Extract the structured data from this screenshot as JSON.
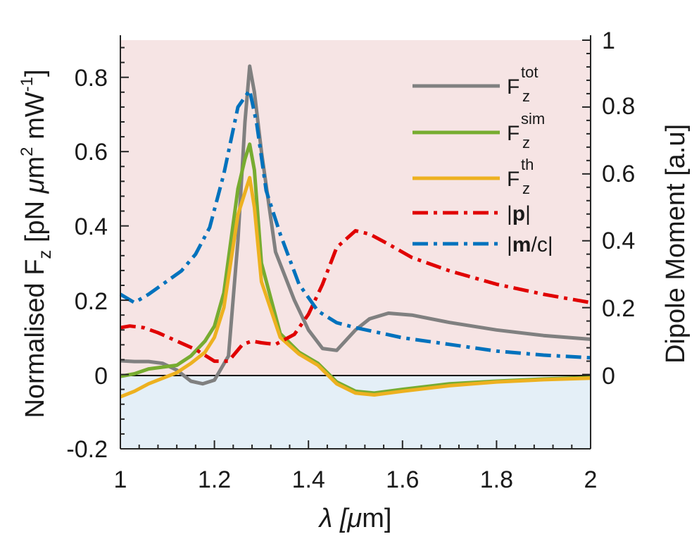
{
  "chart_data": {
    "type": "line",
    "x_ticks": [
      "1",
      "1.2",
      "1.4",
      "1.6",
      "1.8",
      "2"
    ],
    "y_left_ticks": [
      "-0.2",
      "0",
      "0.2",
      "0.4",
      "0.6",
      "0.8"
    ],
    "y_right_ticks": [
      "0",
      "0.2",
      "0.4",
      "0.6",
      "0.8",
      "1"
    ],
    "xlabel": {
      "pre": "λ [",
      "mu": "μ",
      "post": "m]"
    },
    "ylabel_left": {
      "pre": "Normalised F",
      "sub": "z",
      "mid": " [pN ",
      "mu": "μ",
      "m": "m",
      "sup2": "2",
      "mw": " mW",
      "supm1": "-1",
      "end": "]"
    },
    "ylabel_right": "Dipole Moment [a.u]",
    "xlim": [
      1,
      2
    ],
    "ylim_left": [
      -0.2,
      0.9
    ],
    "ylim_right": [
      -0.2222,
      1
    ],
    "colors": {
      "positive_region": "#f6e4e4",
      "negative_region": "#e4eff7",
      "zero_line": "#000000"
    },
    "legend": [
      {
        "label": "F",
        "sub": "z",
        "sup": "tot",
        "color": "#808080",
        "dash": "solid"
      },
      {
        "label": "F",
        "sub": "z",
        "sup": "sim",
        "color": "#77ac30",
        "dash": "solid"
      },
      {
        "label": "F",
        "sub": "z",
        "sup": "th",
        "color": "#edb120",
        "dash": "solid"
      },
      {
        "label_pre": "|",
        "label_bold": "p",
        "label_post": "|",
        "color": "#e00000",
        "dash": "dashdot"
      },
      {
        "label_pre": "|",
        "label_bold": "m",
        "label_post": "/c|",
        "color": "#0072bd",
        "dash": "dashdot"
      }
    ],
    "series": [
      {
        "name": "F_z^tot",
        "axis": "left",
        "color": "#808080",
        "dash": "solid",
        "x": [
          1.0,
          1.03,
          1.06,
          1.09,
          1.12,
          1.15,
          1.175,
          1.2,
          1.23,
          1.25,
          1.265,
          1.275,
          1.285,
          1.3,
          1.33,
          1.37,
          1.4,
          1.43,
          1.46,
          1.5,
          1.53,
          1.57,
          1.62,
          1.7,
          1.8,
          1.9,
          2.0
        ],
        "values": [
          0.037,
          0.035,
          0.035,
          0.03,
          0.012,
          -0.018,
          -0.025,
          -0.015,
          0.05,
          0.36,
          0.68,
          0.83,
          0.76,
          0.6,
          0.33,
          0.2,
          0.12,
          0.07,
          0.065,
          0.12,
          0.15,
          0.165,
          0.16,
          0.14,
          0.12,
          0.105,
          0.095
        ]
      },
      {
        "name": "F_z^sim",
        "axis": "left",
        "color": "#77ac30",
        "dash": "solid",
        "x": [
          1.0,
          1.03,
          1.06,
          1.09,
          1.12,
          1.15,
          1.18,
          1.2,
          1.22,
          1.25,
          1.265,
          1.275,
          1.285,
          1.3,
          1.34,
          1.38,
          1.42,
          1.46,
          1.5,
          1.54,
          1.6,
          1.7,
          1.8,
          1.9,
          2.0
        ],
        "values": [
          -0.005,
          0.002,
          0.015,
          0.02,
          0.025,
          0.05,
          0.09,
          0.13,
          0.22,
          0.5,
          0.58,
          0.62,
          0.55,
          0.3,
          0.11,
          0.06,
          0.03,
          -0.02,
          -0.045,
          -0.05,
          -0.04,
          -0.025,
          -0.018,
          -0.012,
          -0.008
        ]
      },
      {
        "name": "F_z^th",
        "axis": "left",
        "color": "#edb120",
        "dash": "solid",
        "x": [
          1.0,
          1.03,
          1.06,
          1.09,
          1.12,
          1.15,
          1.18,
          1.2,
          1.22,
          1.25,
          1.265,
          1.275,
          1.285,
          1.3,
          1.34,
          1.38,
          1.42,
          1.46,
          1.5,
          1.54,
          1.6,
          1.7,
          1.8,
          1.9,
          2.0
        ],
        "values": [
          -0.06,
          -0.045,
          -0.025,
          -0.01,
          0.005,
          0.03,
          0.06,
          0.1,
          0.18,
          0.43,
          0.49,
          0.53,
          0.45,
          0.25,
          0.1,
          0.055,
          0.025,
          -0.025,
          -0.05,
          -0.055,
          -0.045,
          -0.03,
          -0.02,
          -0.014,
          -0.01
        ]
      },
      {
        "name": "|p|",
        "axis": "right",
        "color": "#e00000",
        "dash": "dashdot",
        "x": [
          1.0,
          1.02,
          1.05,
          1.08,
          1.12,
          1.16,
          1.2,
          1.23,
          1.26,
          1.28,
          1.3,
          1.33,
          1.37,
          1.4,
          1.43,
          1.46,
          1.5,
          1.53,
          1.57,
          1.62,
          1.7,
          1.8,
          1.9,
          2.0
        ],
        "values": [
          0.14,
          0.145,
          0.14,
          0.125,
          0.1,
          0.075,
          0.04,
          0.04,
          0.09,
          0.1,
          0.095,
          0.09,
          0.12,
          0.18,
          0.27,
          0.38,
          0.43,
          0.42,
          0.39,
          0.35,
          0.31,
          0.27,
          0.24,
          0.215
        ]
      },
      {
        "name": "|m/c|",
        "axis": "right",
        "color": "#0072bd",
        "dash": "dashdot",
        "x": [
          1.0,
          1.03,
          1.06,
          1.1,
          1.13,
          1.16,
          1.19,
          1.22,
          1.25,
          1.275,
          1.29,
          1.31,
          1.34,
          1.38,
          1.42,
          1.46,
          1.5,
          1.55,
          1.6,
          1.7,
          1.8,
          1.9,
          2.0
        ],
        "values": [
          0.24,
          0.215,
          0.24,
          0.28,
          0.31,
          0.36,
          0.44,
          0.6,
          0.8,
          0.85,
          0.75,
          0.55,
          0.42,
          0.27,
          0.19,
          0.155,
          0.14,
          0.125,
          0.11,
          0.09,
          0.07,
          0.058,
          0.05
        ]
      }
    ]
  }
}
